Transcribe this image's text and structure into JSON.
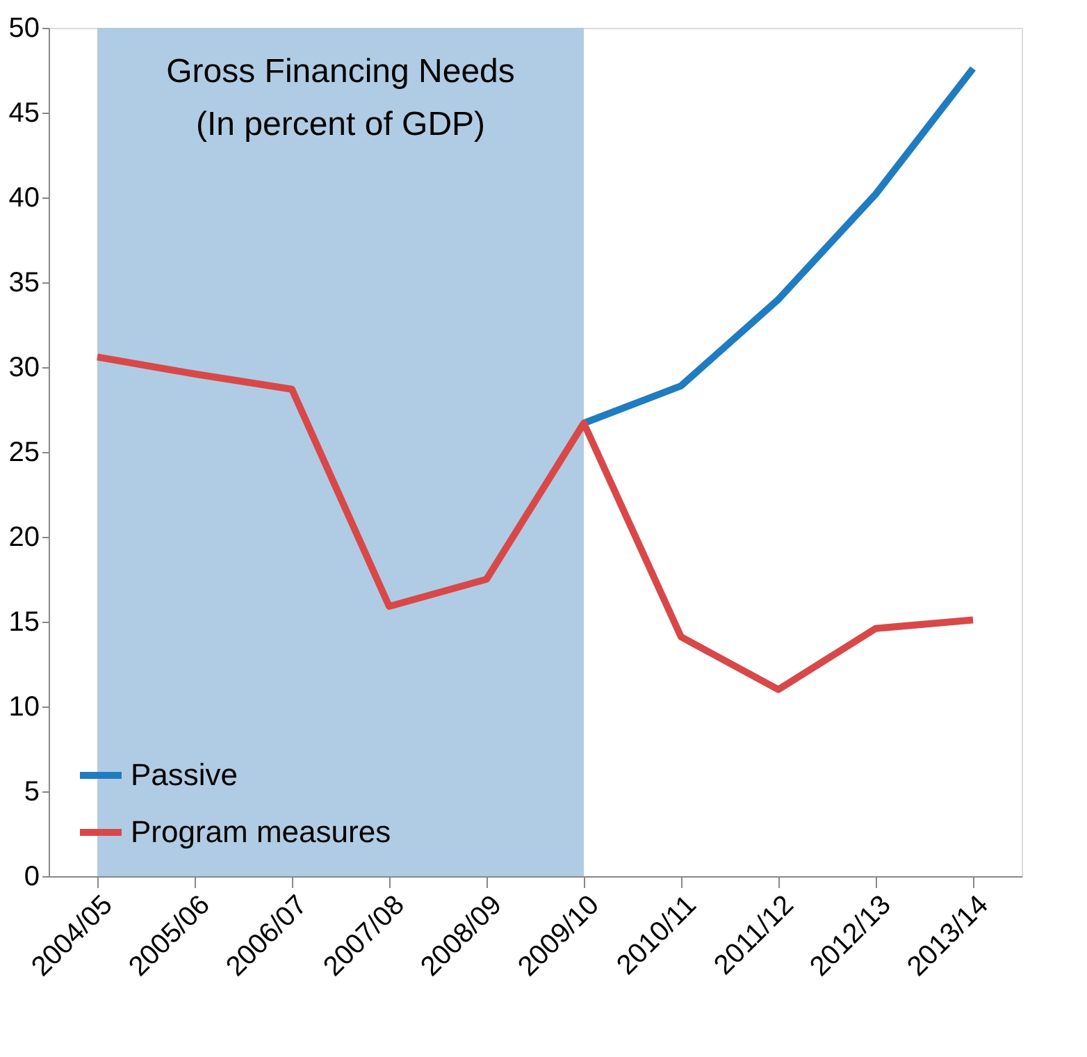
{
  "chart_data": {
    "type": "line",
    "title": "Gross Financing Needs",
    "subtitle": "(In percent of GDP)",
    "categories": [
      "2004/05",
      "2005/06",
      "2006/07",
      "2007/08",
      "2008/09",
      "2009/10",
      "2010/11",
      "2011/12",
      "2012/13",
      "2013/14"
    ],
    "series": [
      {
        "name": "Passive",
        "color": "#1f7cc1",
        "values": [
          null,
          null,
          null,
          null,
          null,
          26.7,
          28.9,
          34.0,
          40.2,
          47.6
        ]
      },
      {
        "name": "Program measures",
        "color": "#d94848",
        "values": [
          30.6,
          29.6,
          28.7,
          15.9,
          17.5,
          26.7,
          14.1,
          11.0,
          14.6,
          15.1
        ]
      }
    ],
    "ylim": [
      0,
      50
    ],
    "yticks": [
      0,
      5,
      10,
      15,
      20,
      25,
      30,
      35,
      40,
      45,
      50
    ],
    "grid": false,
    "legend": "bottom left",
    "line_style": "solid",
    "bands": [
      {
        "axis": "x",
        "from": "2004/05",
        "to": "2009/10",
        "color": "#b0cce4"
      }
    ]
  }
}
